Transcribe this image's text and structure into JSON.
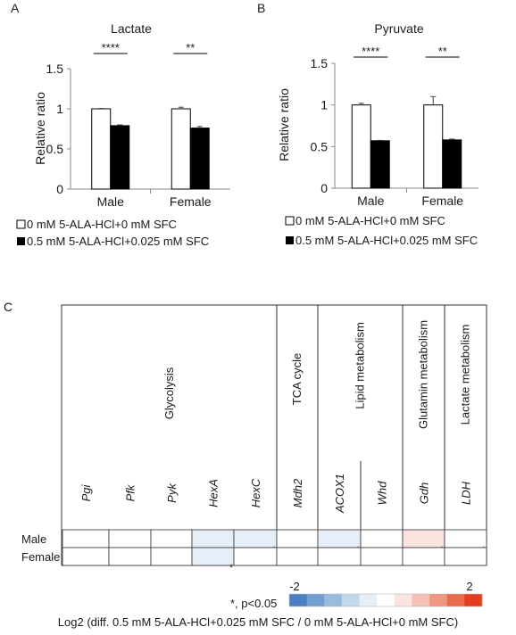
{
  "panels": {
    "a": {
      "letter": "A"
    },
    "b": {
      "letter": "B"
    },
    "c": {
      "letter": "C"
    }
  },
  "legend_ab": {
    "control": "0 mM 5-ALA-HCl+0 mM SFC",
    "treated": "0.5 mM 5-ALA-HCl+0.025 mM SFC",
    "control_color": "#ffffff",
    "treated_color": "#000000"
  },
  "heatmap": {
    "sig_note": "*, p<0.05",
    "scale_min": "-2",
    "scale_max": "2",
    "caption": "Log2 (diff. 0.5 mM 5-ALA-HCl+0.025 mM SFC / 0 mM 5-ALA-HCl+0 mM SFC)",
    "scale_colors": [
      "#4a7fc1",
      "#739ed0",
      "#9bbbde",
      "#c2d6ec",
      "#e6eef8",
      "#ffffff",
      "#fbe3df",
      "#f6c0b5",
      "#f09582",
      "#ea6a4f",
      "#e43d1e"
    ]
  },
  "chart_data": [
    {
      "type": "bar",
      "title": "Lactate",
      "ylabel": "Relative ratio",
      "categories": [
        "Male",
        "Female"
      ],
      "ylim": [
        0,
        1.5
      ],
      "yticks": [
        "0",
        "0.5",
        "1",
        "1.5"
      ],
      "series": [
        {
          "name": "0 mM 5-ALA-HCl+0 mM SFC",
          "values": [
            1.0,
            1.0
          ],
          "errors": [
            0.005,
            0.02
          ]
        },
        {
          "name": "0.5 mM 5-ALA-HCl+0.025 mM SFC",
          "values": [
            0.79,
            0.76
          ],
          "errors": [
            0.01,
            0.02
          ]
        }
      ],
      "significance": [
        "****",
        "**"
      ]
    },
    {
      "type": "bar",
      "title": "Pyruvate",
      "ylabel": "Relative ratio",
      "categories": [
        "Male",
        "Female"
      ],
      "ylim": [
        0,
        1.5
      ],
      "yticks": [
        "0",
        "0.5",
        "1",
        "1.5"
      ],
      "series": [
        {
          "name": "0 mM 5-ALA-HCl+0 mM SFC",
          "values": [
            1.0,
            1.0
          ],
          "errors": [
            0.02,
            0.1
          ]
        },
        {
          "name": "0.5 mM 5-ALA-HCl+0.025 mM SFC",
          "values": [
            0.57,
            0.58
          ],
          "errors": [
            0.005,
            0.01
          ]
        }
      ],
      "significance": [
        "****",
        "**"
      ]
    },
    {
      "type": "heatmap",
      "rows": [
        "Male",
        "Female"
      ],
      "genes": [
        "Pgi",
        "Pfk",
        "Pyk",
        "HexA",
        "HexC",
        "Mdh2",
        "ACOX1",
        "Whd",
        "Gdh",
        "LDH"
      ],
      "groups": [
        {
          "label": "Glycolysis",
          "genes": [
            "Pgi",
            "Pfk",
            "Pyk",
            "HexA",
            "HexC"
          ]
        },
        {
          "label": "TCA cycle",
          "genes": [
            "Mdh2"
          ]
        },
        {
          "label": "Lipid metabolism",
          "genes": [
            "ACOX1",
            "Whd"
          ]
        },
        {
          "label": "Glutamin metabolism",
          "genes": [
            "Gdh"
          ]
        },
        {
          "label": "Lactate metabolism",
          "genes": [
            "LDH"
          ]
        }
      ],
      "values": [
        [
          0.0,
          0.05,
          -0.15,
          -0.3,
          -0.55,
          0.0,
          -0.5,
          0.0,
          0.35,
          0.15
        ],
        [
          0.0,
          -0.05,
          -0.1,
          -0.25,
          0.0,
          0.0,
          0.0,
          0.0,
          0.05,
          0.1
        ]
      ],
      "significant": [
        [
          false,
          false,
          false,
          false,
          true,
          false,
          true,
          false,
          true,
          true
        ],
        [
          false,
          false,
          false,
          true,
          false,
          false,
          false,
          false,
          false,
          false
        ]
      ],
      "scale": [
        -2,
        2
      ]
    }
  ]
}
